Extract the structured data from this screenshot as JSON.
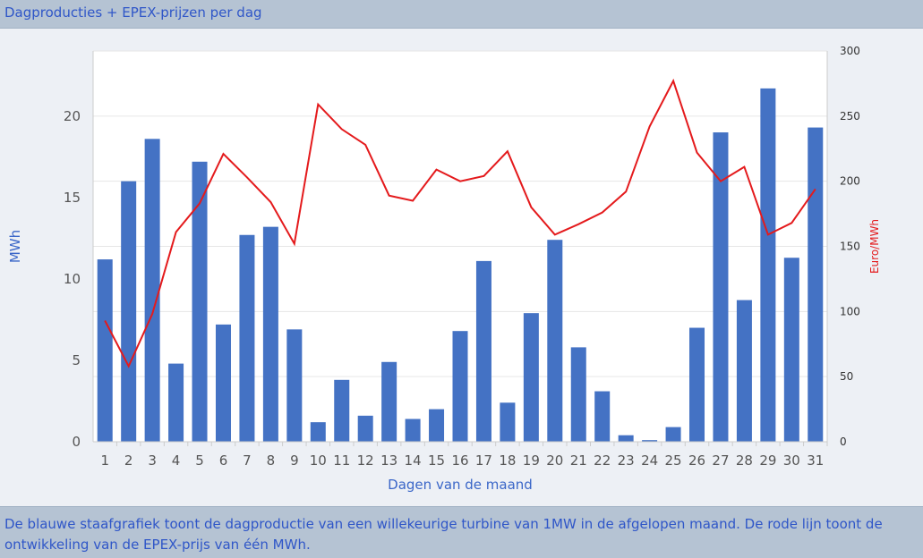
{
  "header": {
    "title": "Dagproducties + EPEX-prijzen per dag"
  },
  "footer": {
    "description": "De blauwe staafgrafiek toont de dagproductie van een willekeurige turbine van 1MW in de afgelopen maand. De rode lijn toont de ontwikkeling van de EPEX-prijs van één MWh."
  },
  "chart_data": {
    "type": "bar",
    "categories": [
      "1",
      "2",
      "3",
      "4",
      "5",
      "6",
      "7",
      "8",
      "9",
      "10",
      "11",
      "12",
      "13",
      "14",
      "15",
      "16",
      "17",
      "18",
      "19",
      "20",
      "21",
      "22",
      "23",
      "24",
      "25",
      "26",
      "27",
      "28",
      "29",
      "30",
      "31"
    ],
    "xlabel": "Dagen van de maand",
    "ylabel": "MWh",
    "y2label": "Euro/MWh",
    "ylim": [
      0,
      24
    ],
    "y2lim": [
      0,
      300
    ],
    "yticks": [
      0,
      5,
      10,
      15,
      20
    ],
    "y2ticks": [
      0,
      50,
      100,
      150,
      200,
      250,
      300
    ],
    "grid": true,
    "series": [
      {
        "type": "bar",
        "axis": "left",
        "color": "#4472c4",
        "values": [
          11.2,
          16.0,
          18.6,
          4.8,
          17.2,
          7.2,
          12.7,
          13.2,
          6.9,
          1.2,
          3.8,
          1.6,
          4.9,
          1.4,
          2.0,
          6.8,
          11.1,
          2.4,
          7.9,
          12.4,
          5.8,
          3.1,
          0.4,
          0.1,
          0.9,
          7.0,
          19.0,
          8.7,
          21.7,
          11.3,
          19.3
        ]
      },
      {
        "type": "line",
        "axis": "right",
        "color": "#e41a1c",
        "values": [
          93,
          58,
          98,
          161,
          183,
          221,
          203,
          184,
          152,
          259,
          240,
          228,
          189,
          185,
          209,
          200,
          204,
          223,
          180,
          159,
          167,
          176,
          192,
          242,
          277,
          222,
          200,
          211,
          159,
          168,
          194
        ]
      }
    ]
  }
}
